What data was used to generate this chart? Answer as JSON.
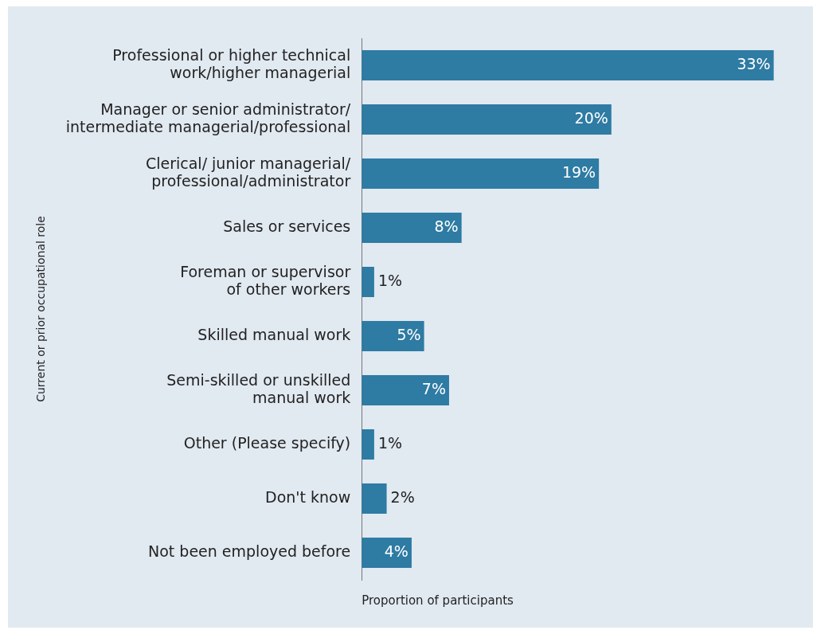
{
  "chart_data": {
    "type": "bar",
    "orientation": "horizontal",
    "categories": [
      "Professional or higher technical\nwork/higher managerial",
      "Manager or senior administrator/\nintermediate managerial/professional",
      "Clerical/ junior managerial/\nprofessional/administrator",
      "Sales or services",
      "Foreman or supervisor\nof other workers",
      "Skilled manual work",
      "Semi-skilled or unskilled\nmanual work",
      "Other (Please specify)",
      "Don't know",
      "Not been employed before"
    ],
    "values": [
      33,
      20,
      19,
      8,
      1,
      5,
      7,
      1,
      2,
      4
    ],
    "value_labels": [
      "33%",
      "20%",
      "19%",
      "8%",
      "1%",
      "5%",
      "7%",
      "1%",
      "2%",
      "4%"
    ],
    "color": "#2e7ba3",
    "xlabel": "Proportion of participants",
    "ylabel": "Current or prior occupational role",
    "tick_labels": "y",
    "grid": false,
    "legend": false
  }
}
